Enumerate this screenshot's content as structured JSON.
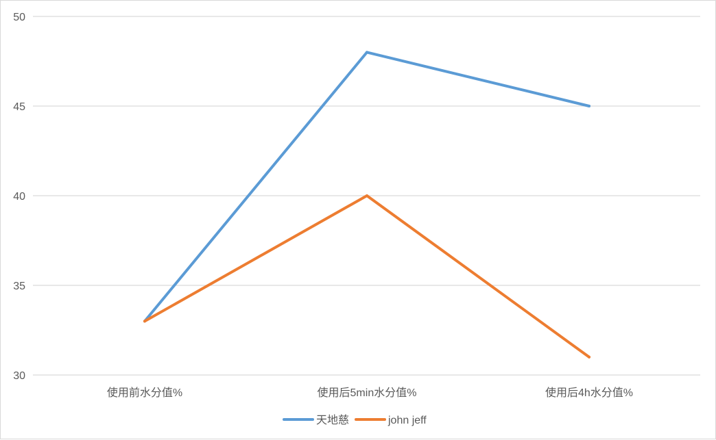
{
  "chart_data": {
    "type": "line",
    "title": "",
    "xlabel": "",
    "ylabel": "",
    "categories": [
      "使用前水分值%",
      "使用后5min水分值%",
      "使用后4h水分值%"
    ],
    "ylim": [
      30,
      50
    ],
    "yticks": [
      30,
      35,
      40,
      45,
      50
    ],
    "grid": "horizontal",
    "legend": "bottom",
    "series": [
      {
        "name": "天地慈",
        "values": [
          33,
          48,
          45
        ],
        "color": "#5b9bd5"
      },
      {
        "name": "john jeff",
        "values": [
          33,
          40,
          31
        ],
        "color": "#ed7d31"
      }
    ]
  }
}
